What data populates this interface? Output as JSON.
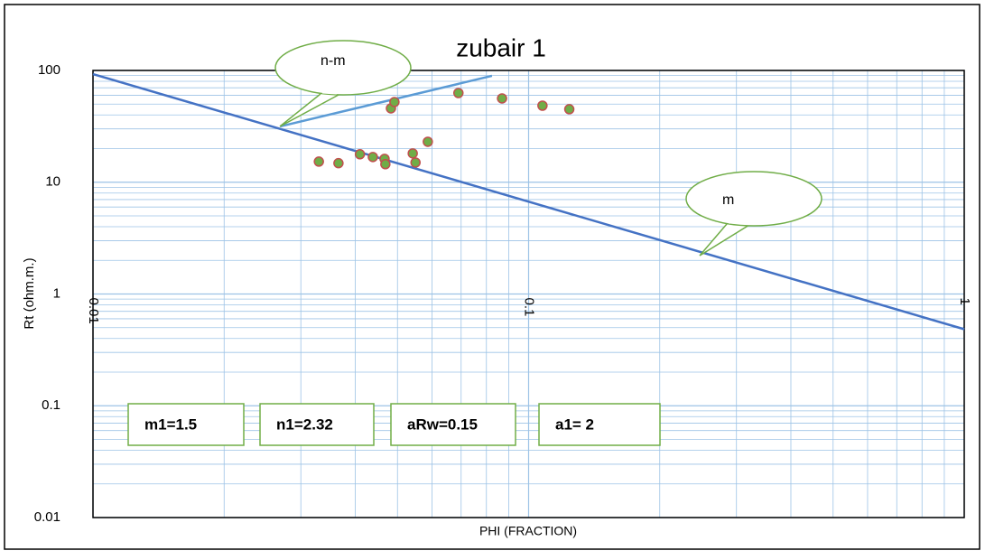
{
  "chart_data": {
    "type": "scatter",
    "title": "zubair 1",
    "x_label": "PHI (FRACTION)",
    "y_label": "Rt (ohm.m.)",
    "xscale": "log",
    "yscale": "log",
    "grid": true,
    "minor_grid": true,
    "xlim": [
      0.01,
      1
    ],
    "ylim": [
      0.01,
      100
    ],
    "xticks": [
      0.01,
      0.1,
      1
    ],
    "yticks": [
      0.01,
      0.1,
      1,
      10,
      100
    ],
    "series": [
      {
        "color": "#70ad47",
        "edge_color": "#c0504d",
        "x": [
          0.033,
          0.0366,
          0.041,
          0.0439,
          0.0467,
          0.0469,
          0.0483,
          0.0492,
          0.0542,
          0.055,
          0.0587,
          0.069,
          0.0869,
          0.1076,
          0.124
        ],
        "values": [
          15.3,
          14.8,
          17.8,
          16.8,
          16.2,
          14.5,
          45.8,
          52.2,
          18.1,
          15.0,
          23,
          62.8,
          56.2,
          48.4,
          45
        ]
      }
    ],
    "lines": [
      {
        "color": "#4472c4",
        "x": [
          0.01,
          1
        ],
        "values": [
          92.8,
          0.484
        ]
      },
      {
        "color": "#5b9bd5",
        "x": [
          0.0269,
          0.0824
        ],
        "values": [
          31.6,
          89.5
        ]
      }
    ],
    "callouts": [
      "n-m",
      "m"
    ],
    "annotations": [
      "m1=1.5",
      "n1=2.32",
      "aRw=0.15",
      "a1= 2"
    ]
  }
}
